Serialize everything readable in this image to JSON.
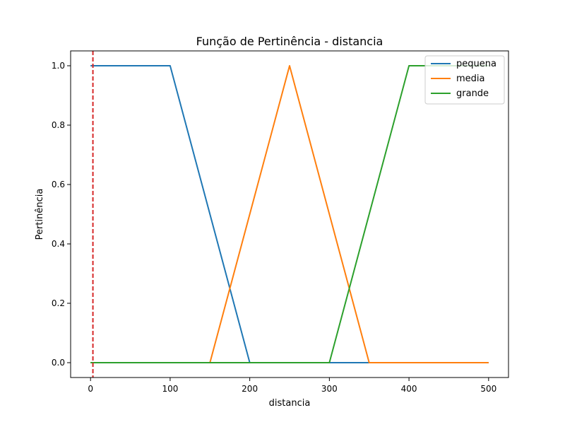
{
  "chart_data": {
    "type": "line",
    "title": "Função de Pertinência - distancia",
    "xlabel": "distancia",
    "ylabel": "Pertinência",
    "xlim": [
      -25,
      525
    ],
    "ylim": [
      -0.05,
      1.05
    ],
    "xticks": [
      0,
      100,
      200,
      300,
      400,
      500
    ],
    "xtick_labels": [
      "0",
      "100",
      "200",
      "300",
      "400",
      "500"
    ],
    "yticks": [
      0.0,
      0.2,
      0.4,
      0.6,
      0.8,
      1.0
    ],
    "ytick_labels": [
      "0.0",
      "0.2",
      "0.4",
      "0.6",
      "0.8",
      "1.0"
    ],
    "grid": false,
    "legend_position": "top-right",
    "series": [
      {
        "name": "pequena",
        "color": "#1f77b4",
        "points": [
          [
            0,
            1
          ],
          [
            100,
            1
          ],
          [
            200,
            0
          ],
          [
            500,
            0
          ]
        ]
      },
      {
        "name": "media",
        "color": "#ff7f0e",
        "points": [
          [
            0,
            0
          ],
          [
            150,
            0
          ],
          [
            250,
            1
          ],
          [
            350,
            0
          ],
          [
            500,
            0
          ]
        ]
      },
      {
        "name": "grande",
        "color": "#2ca02c",
        "points": [
          [
            0,
            0
          ],
          [
            300,
            0
          ],
          [
            400,
            1
          ],
          [
            500,
            1
          ]
        ]
      }
    ],
    "reference_line": {
      "orientation": "vertical",
      "x": 3,
      "color": "#d62728",
      "style": "dashed"
    }
  }
}
